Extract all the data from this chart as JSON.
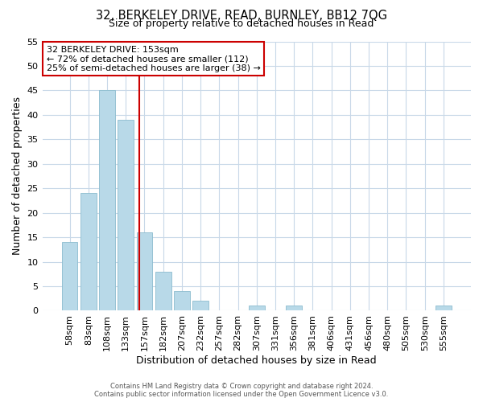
{
  "title_line1": "32, BERKELEY DRIVE, READ, BURNLEY, BB12 7QG",
  "title_line2": "Size of property relative to detached houses in Read",
  "xlabel": "Distribution of detached houses by size in Read",
  "ylabel": "Number of detached properties",
  "bar_labels": [
    "58sqm",
    "83sqm",
    "108sqm",
    "133sqm",
    "157sqm",
    "182sqm",
    "207sqm",
    "232sqm",
    "257sqm",
    "282sqm",
    "307sqm",
    "331sqm",
    "356sqm",
    "381sqm",
    "406sqm",
    "431sqm",
    "456sqm",
    "480sqm",
    "505sqm",
    "530sqm",
    "555sqm"
  ],
  "bar_values": [
    14,
    24,
    45,
    39,
    16,
    8,
    4,
    2,
    0,
    0,
    1,
    0,
    1,
    0,
    0,
    0,
    0,
    0,
    0,
    0,
    1
  ],
  "bar_color": "#b8d9e8",
  "bar_edge_color": "#8bbcce",
  "highlight_line_color": "#cc0000",
  "annotation_text_line1": "32 BERKELEY DRIVE: 153sqm",
  "annotation_text_line2": "← 72% of detached houses are smaller (112)",
  "annotation_text_line3": "25% of semi-detached houses are larger (38) →",
  "annotation_box_facecolor": "#ffffff",
  "annotation_box_edgecolor": "#cc0000",
  "ylim": [
    0,
    55
  ],
  "yticks": [
    0,
    5,
    10,
    15,
    20,
    25,
    30,
    35,
    40,
    45,
    50,
    55
  ],
  "bg_color": "#ffffff",
  "grid_color": "#c8d8e8",
  "footer_line1": "Contains HM Land Registry data © Crown copyright and database right 2024.",
  "footer_line2": "Contains public sector information licensed under the Open Government Licence v3.0."
}
